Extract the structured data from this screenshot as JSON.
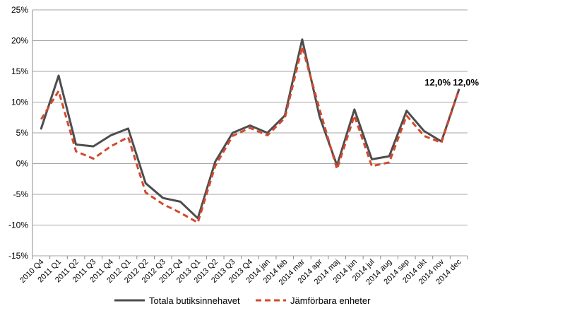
{
  "chart_data": {
    "type": "line",
    "categories": [
      "2010 Q4",
      "2011 Q1",
      "2011 Q2",
      "2011 Q3",
      "2011 Q4",
      "2012 Q1",
      "2012 Q2",
      "2012 Q3",
      "2012 Q4",
      "2013 Q1",
      "2013 Q2",
      "2013 Q3",
      "2013 Q4",
      "2014 jan",
      "2014 feb",
      "2014 mar",
      "2014 apr",
      "2014 maj",
      "2014 jun",
      "2014 jul",
      "2014 aug",
      "2014 sep",
      "2014 okt",
      "2014 nov",
      "2014 dec"
    ],
    "series": [
      {
        "name": "Totala butiksinnehavet",
        "color": "#4d4d4d",
        "style": "solid",
        "values": [
          5.7,
          14.3,
          3.1,
          2.8,
          4.6,
          5.7,
          -3.2,
          -5.6,
          -6.2,
          -8.9,
          0.3,
          5.0,
          6.2,
          5.0,
          7.8,
          20.2,
          7.6,
          -0.3,
          8.8,
          0.7,
          1.2,
          8.6,
          5.3,
          3.6,
          12.0
        ]
      },
      {
        "name": "Jämförbara enheter",
        "color": "#d2492f",
        "style": "dashed",
        "values": [
          7.2,
          11.8,
          2.0,
          0.8,
          2.8,
          4.3,
          -4.7,
          -6.6,
          -8.0,
          -9.6,
          -0.4,
          4.5,
          5.8,
          4.6,
          7.4,
          19.0,
          8.8,
          -0.9,
          7.8,
          -0.4,
          0.2,
          7.8,
          4.5,
          3.4,
          12.0
        ]
      }
    ],
    "data_labels": [
      {
        "series": 0,
        "index": 24,
        "text": "12,0%"
      },
      {
        "series": 1,
        "index": 24,
        "text": "12,0%"
      }
    ],
    "ylim": [
      -15,
      25
    ],
    "yticks": [
      "-15%",
      "-10%",
      "-5%",
      "0%",
      "5%",
      "10%",
      "15%",
      "20%",
      "25%"
    ],
    "grid": true,
    "legend_position": "bottom",
    "xlabel": "",
    "ylabel": "",
    "title": ""
  }
}
